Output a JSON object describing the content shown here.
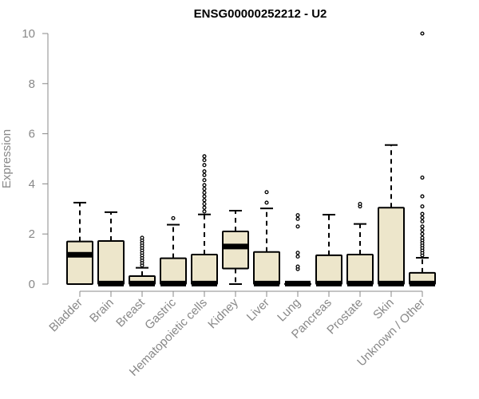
{
  "chart_data": {
    "type": "boxplot",
    "title": "ENSG00000252212 - U2",
    "xlabel": "",
    "ylabel": "Expression",
    "ylim": [
      0,
      10
    ],
    "yticks": [
      0,
      2,
      4,
      6,
      8,
      10
    ],
    "categories": [
      "Bladder",
      "Brain",
      "Breast",
      "Gastric",
      "Hematopoietic cells",
      "Kidney",
      "Liver",
      "Lung",
      "Pancreas",
      "Prostate",
      "Skin",
      "Unknown / Other"
    ],
    "grid": false,
    "colors": {
      "box_fill": "#ede6cb",
      "stroke": "#000000",
      "axis": "#888888"
    },
    "boxes": [
      {
        "min": 0,
        "q1": 0,
        "median": 1.17,
        "q3": 1.7,
        "max": 3.25,
        "outliers": []
      },
      {
        "min": 0,
        "q1": 0,
        "median": 0.02,
        "q3": 1.72,
        "max": 2.87,
        "outliers": []
      },
      {
        "min": 0,
        "q1": 0,
        "median": 0.02,
        "q3": 0.32,
        "max": 0.65,
        "outliers": [
          0.75,
          0.85,
          0.95,
          1.05,
          1.15,
          1.25,
          1.35,
          1.45,
          1.55,
          1.65,
          1.75,
          1.85
        ]
      },
      {
        "min": 0,
        "q1": 0,
        "median": 0.02,
        "q3": 1.03,
        "max": 2.37,
        "outliers": [
          2.63
        ]
      },
      {
        "min": 0,
        "q1": 0,
        "median": 0.02,
        "q3": 1.18,
        "max": 2.78,
        "outliers": [
          2.9,
          3.05,
          3.2,
          3.35,
          3.5,
          3.65,
          3.8,
          3.95,
          4.15,
          4.35,
          4.5,
          4.75,
          4.95,
          5.1
        ]
      },
      {
        "min": 0,
        "q1": 0.62,
        "median": 1.5,
        "q3": 2.1,
        "max": 2.93,
        "outliers": []
      },
      {
        "min": 0,
        "q1": 0,
        "median": 0.02,
        "q3": 1.28,
        "max": 3.02,
        "outliers": [
          3.25,
          3.67
        ]
      },
      {
        "min": 0,
        "q1": 0,
        "median": 0.02,
        "q3": 0.02,
        "max": 0.05,
        "outliers": [
          0.6,
          0.7,
          1.1,
          1.25,
          2.3,
          2.6,
          2.75
        ]
      },
      {
        "min": 0,
        "q1": 0,
        "median": 0.02,
        "q3": 1.15,
        "max": 2.77,
        "outliers": []
      },
      {
        "min": 0,
        "q1": 0,
        "median": 0.02,
        "q3": 1.18,
        "max": 2.4,
        "outliers": [
          3.1,
          3.2
        ]
      },
      {
        "min": 0,
        "q1": 0,
        "median": 0.02,
        "q3": 3.05,
        "max": 5.55,
        "outliers": []
      },
      {
        "min": 0,
        "q1": 0,
        "median": 0.02,
        "q3": 0.45,
        "max": 1.05,
        "outliers": [
          1.15,
          1.25,
          1.35,
          1.45,
          1.55,
          1.65,
          1.75,
          1.85,
          2.0,
          2.15,
          2.3,
          2.5,
          2.65,
          2.8,
          3.1,
          3.5,
          4.25,
          10.0
        ]
      }
    ]
  }
}
